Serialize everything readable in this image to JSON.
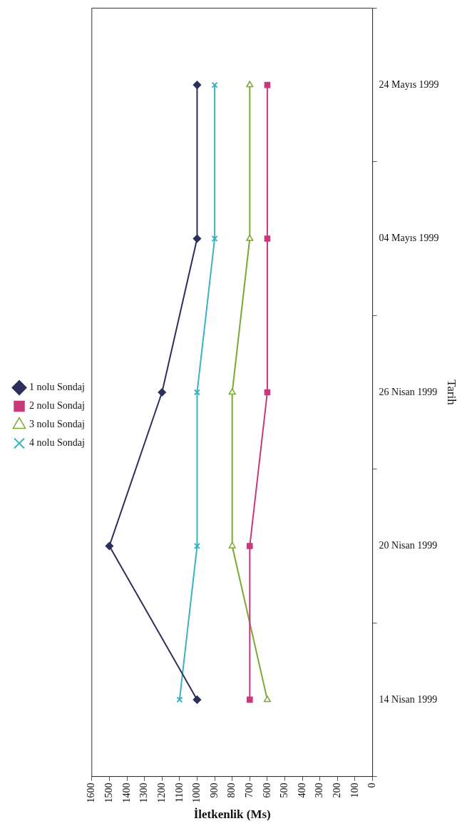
{
  "chart_data": {
    "type": "line",
    "orientation": "horizontal",
    "xlabel": "İletkenlik (Ms)",
    "ylabel": "Tarih",
    "categories": [
      "24 Mayıs 1999",
      "04 Mayıs 1999",
      "26 Nisan 1999",
      "20 Nisan 1999",
      "14 Nisan 1999"
    ],
    "series": [
      {
        "name": "1 nolu Sondaj",
        "color": "#2b2f5c",
        "marker": "diamond",
        "values": [
          1000,
          1000,
          1200,
          1500,
          1000
        ]
      },
      {
        "name": "2 nolu Sondaj",
        "color": "#c8387a",
        "marker": "square",
        "values": [
          600,
          600,
          600,
          700,
          700
        ]
      },
      {
        "name": "3 nolu Sondaj",
        "color": "#7aa832",
        "marker": "triangle",
        "values": [
          700,
          700,
          800,
          800,
          600
        ]
      },
      {
        "name": "4 nolu Sondaj",
        "color": "#3ab3c0",
        "marker": "cross",
        "values": [
          900,
          900,
          1000,
          1000,
          1100
        ]
      }
    ],
    "xlim": [
      1600,
      0
    ],
    "xticks": [
      0,
      100,
      200,
      300,
      400,
      500,
      600,
      700,
      800,
      900,
      1000,
      1100,
      1200,
      1300,
      1400,
      1500,
      1600
    ],
    "grid": false,
    "legend": "left",
    "line_style": "solid"
  }
}
